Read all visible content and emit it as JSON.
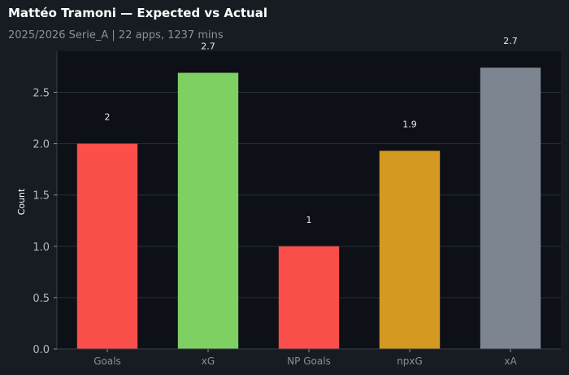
{
  "header": {
    "title": "Mattéo Tramoni — Expected vs Actual",
    "subtitle": "2025/2026 Serie_A | 22 apps, 1237 mins"
  },
  "chart_data": {
    "type": "bar",
    "title": "Mattéo Tramoni — Expected vs Actual",
    "subtitle": "2025/2026 Serie_A | 22 apps, 1237 mins",
    "xlabel": "",
    "ylabel": "Count",
    "categories": [
      "Goals",
      "xG",
      "NP Goals",
      "npxG",
      "xA"
    ],
    "values": [
      2,
      2.69,
      1,
      1.93,
      2.74
    ],
    "value_labels": [
      "2",
      "2.7",
      "1",
      "1.9",
      "2.7"
    ],
    "colors": [
      "#fa4f4a",
      "#7ed063",
      "#fa4f4a",
      "#d49920",
      "#7d8591"
    ],
    "ylim": [
      0,
      2.9
    ],
    "yticks": [
      0.0,
      0.5,
      1.0,
      1.5,
      2.0,
      2.5
    ],
    "ytick_labels": [
      "0.0",
      "0.5",
      "1.0",
      "1.5",
      "2.0",
      "2.5"
    ],
    "grid": true
  }
}
